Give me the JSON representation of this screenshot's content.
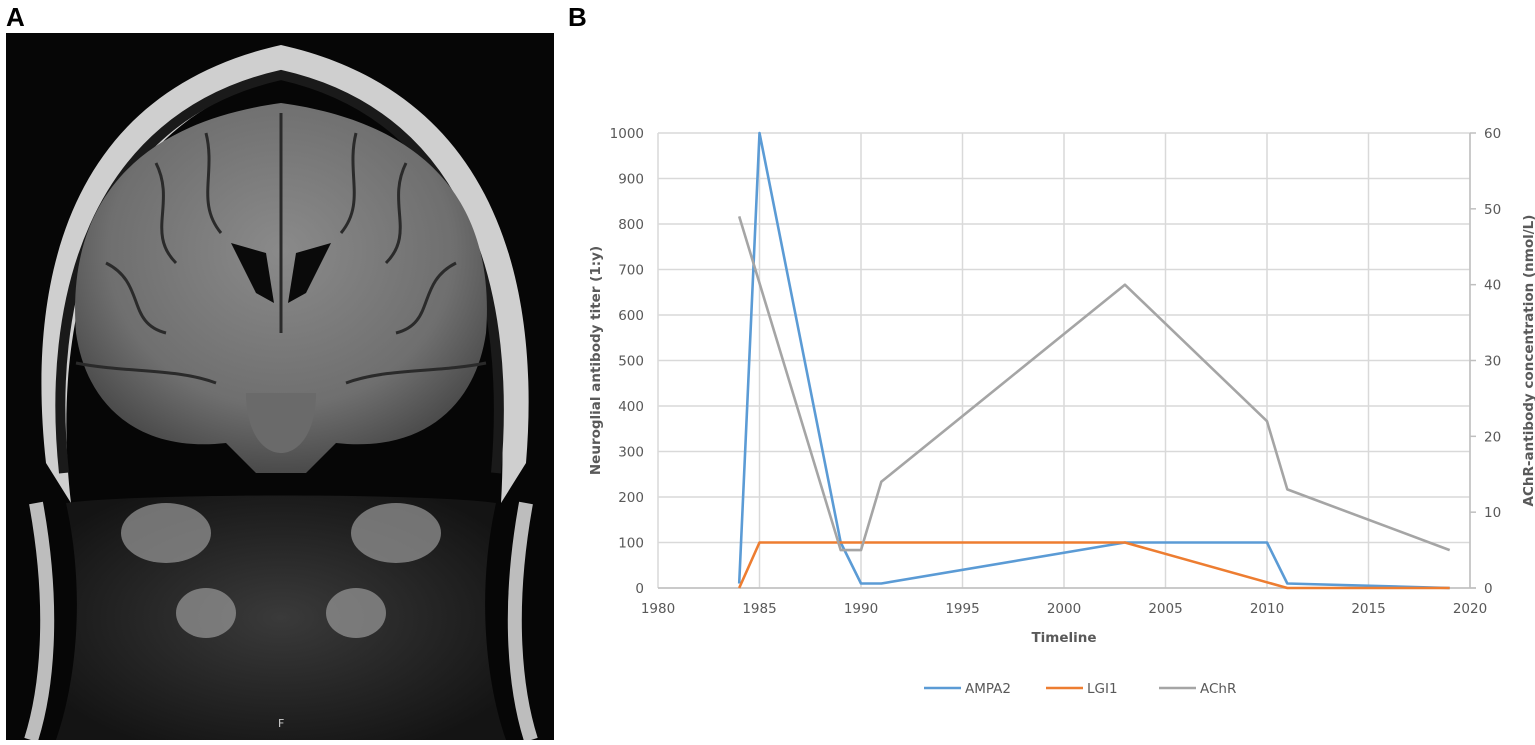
{
  "panels": {
    "a": {
      "label": "A",
      "image_description": "Coronal FLAIR brain MRI",
      "marker": "F"
    },
    "b": {
      "label": "B"
    }
  },
  "chart_data": {
    "type": "line",
    "title": "",
    "xlabel": "Timeline",
    "ylabel": "Neuroglial antibody titer (1:y)",
    "y2label": "AChR-antibody concentration (nmol/L)",
    "xlim": [
      1980,
      2020
    ],
    "ylim": [
      0,
      1000
    ],
    "y2lim": [
      0,
      60
    ],
    "x_ticks": [
      1980,
      1985,
      1990,
      1995,
      2000,
      2005,
      2010,
      2015,
      2020
    ],
    "y_ticks": [
      0,
      100,
      200,
      300,
      400,
      500,
      600,
      700,
      800,
      900,
      1000
    ],
    "y2_ticks": [
      0,
      10,
      20,
      30,
      40,
      50,
      60
    ],
    "grid": true,
    "legend_position": "bottom",
    "series": [
      {
        "name": "AMPA2",
        "color": "#5b9bd5",
        "axis": "left",
        "x": [
          1984,
          1985,
          1989,
          1990,
          1991,
          2003,
          2010,
          2011,
          2019
        ],
        "values": [
          10,
          1000,
          100,
          10,
          10,
          100,
          100,
          10,
          0
        ]
      },
      {
        "name": "LGI1",
        "color": "#ed7d31",
        "axis": "left",
        "x": [
          1984,
          1985,
          2003,
          2011,
          2019
        ],
        "values": [
          0,
          100,
          100,
          0,
          0
        ]
      },
      {
        "name": "AChR",
        "color": "#a5a5a5",
        "axis": "right",
        "x": [
          1984,
          1989,
          1990,
          1991,
          2003,
          2010,
          2011,
          2019
        ],
        "values": [
          49,
          5,
          5,
          14,
          40,
          22,
          13,
          5
        ]
      }
    ]
  }
}
